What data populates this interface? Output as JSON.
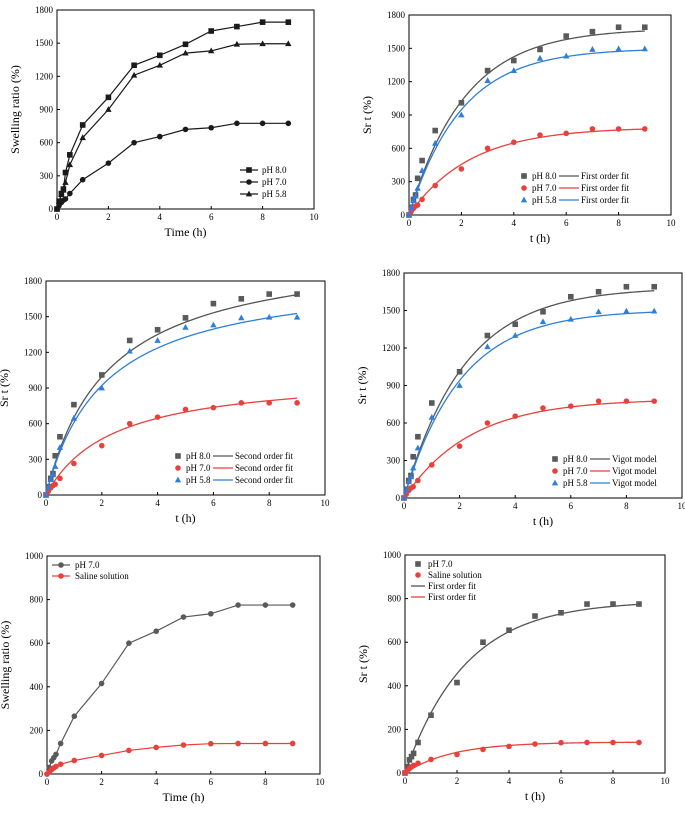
{
  "colors": {
    "black": "#1a1a1a",
    "gray": "#5a5a5a",
    "red": "#e8413c",
    "blue": "#2f7fd8",
    "fit_black": "#555555"
  },
  "chart_data": [
    {
      "id": "a",
      "type": "line",
      "title": "",
      "xlabel": "Time (h)",
      "ylabel": "Swelling ratio (%)",
      "xlim": [
        0,
        10
      ],
      "ylim": [
        0,
        1800
      ],
      "xticks": [
        0,
        2,
        4,
        6,
        8,
        10
      ],
      "yticks": [
        0,
        300,
        600,
        900,
        1200,
        1500,
        1800
      ],
      "legend_position": "bottom-right",
      "series": [
        {
          "name": "pH 8.0",
          "color": "#1a1a1a",
          "marker": "square",
          "mode": "line-marker",
          "x": [
            0,
            0.08,
            0.17,
            0.25,
            0.33,
            0.5,
            1,
            2,
            3,
            4,
            5,
            6,
            7,
            8,
            9
          ],
          "y": [
            0,
            70,
            140,
            180,
            330,
            490,
            760,
            1010,
            1300,
            1390,
            1490,
            1610,
            1650,
            1690,
            1690
          ]
        },
        {
          "name": "pH 7.0",
          "color": "#1a1a1a",
          "marker": "circle",
          "mode": "line-marker",
          "x": [
            0,
            0.08,
            0.17,
            0.25,
            0.33,
            0.5,
            1,
            2,
            3,
            4,
            5,
            6,
            7,
            8,
            9
          ],
          "y": [
            0,
            30,
            60,
            80,
            90,
            140,
            265,
            415,
            600,
            655,
            720,
            735,
            775,
            775,
            775
          ]
        },
        {
          "name": "pH 5.8",
          "color": "#1a1a1a",
          "marker": "triangle",
          "mode": "line-marker",
          "x": [
            0,
            0.08,
            0.17,
            0.25,
            0.33,
            0.5,
            1,
            2,
            3,
            4,
            5,
            6,
            7,
            8,
            9
          ],
          "y": [
            0,
            65,
            130,
            170,
            240,
            400,
            645,
            900,
            1210,
            1300,
            1410,
            1430,
            1490,
            1495,
            1495
          ]
        }
      ]
    },
    {
      "id": "b",
      "type": "scatter",
      "title": "",
      "xlabel": "t (h)",
      "ylabel": "Sr t (%)",
      "xlim": [
        0,
        10
      ],
      "ylim": [
        0,
        1800
      ],
      "xticks": [
        0,
        2,
        4,
        6,
        8,
        10
      ],
      "yticks": [
        0,
        300,
        600,
        900,
        1200,
        1500,
        1800
      ],
      "legend_position": "bottom-right",
      "series": [
        {
          "name": "pH 8.0",
          "fit_label": "First order fit",
          "color": "#5a5a5a",
          "fit_color": "#555555",
          "marker": "square",
          "x": [
            0,
            0.08,
            0.17,
            0.25,
            0.33,
            0.5,
            1,
            2,
            3,
            4,
            5,
            6,
            7,
            8,
            9
          ],
          "y": [
            0,
            70,
            140,
            180,
            330,
            490,
            760,
            1010,
            1300,
            1390,
            1490,
            1610,
            1650,
            1690,
            1690
          ],
          "fit": {
            "model": "first",
            "A": 1680,
            "k": 0.47
          }
        },
        {
          "name": "pH 7.0",
          "fit_label": "First order fit",
          "color": "#e8413c",
          "fit_color": "#e8413c",
          "marker": "circle",
          "x": [
            0,
            0.08,
            0.17,
            0.25,
            0.33,
            0.5,
            1,
            2,
            3,
            4,
            5,
            6,
            7,
            8,
            9
          ],
          "y": [
            0,
            30,
            60,
            80,
            90,
            140,
            265,
            415,
            600,
            655,
            720,
            735,
            775,
            775,
            775
          ],
          "fit": {
            "model": "first",
            "A": 790,
            "k": 0.43
          }
        },
        {
          "name": "pH 5.8",
          "fit_label": "First order fit",
          "color": "#2f7fd8",
          "fit_color": "#2f7fd8",
          "marker": "triangle",
          "x": [
            0,
            0.08,
            0.17,
            0.25,
            0.33,
            0.5,
            1,
            2,
            3,
            4,
            5,
            6,
            7,
            8,
            9
          ],
          "y": [
            0,
            65,
            130,
            170,
            240,
            400,
            645,
            900,
            1210,
            1300,
            1410,
            1430,
            1490,
            1495,
            1495
          ],
          "fit": {
            "model": "first",
            "A": 1500,
            "k": 0.5
          }
        }
      ]
    },
    {
      "id": "c",
      "type": "scatter",
      "title": "",
      "xlabel": "t (h)",
      "ylabel": "Sr t (%)",
      "xlim": [
        0,
        10
      ],
      "ylim": [
        0,
        1800
      ],
      "xticks": [
        0,
        2,
        4,
        6,
        8,
        10
      ],
      "yticks": [
        0,
        300,
        600,
        900,
        1200,
        1500,
        1800
      ],
      "legend_position": "bottom-right",
      "series": [
        {
          "name": "pH 8.0",
          "fit_label": "Second order fit",
          "color": "#5a5a5a",
          "fit_color": "#555555",
          "marker": "square",
          "x": [
            0,
            0.08,
            0.17,
            0.25,
            0.33,
            0.5,
            1,
            2,
            3,
            4,
            5,
            6,
            7,
            8,
            9
          ],
          "y": [
            0,
            70,
            140,
            180,
            330,
            490,
            760,
            1010,
            1300,
            1390,
            1490,
            1610,
            1650,
            1690,
            1690
          ],
          "fit": {
            "model": "second",
            "A": 2100,
            "b": 0.45
          }
        },
        {
          "name": "pH 7.0",
          "fit_label": "Second order fit",
          "color": "#e8413c",
          "fit_color": "#e8413c",
          "marker": "circle",
          "x": [
            0,
            0.08,
            0.17,
            0.25,
            0.33,
            0.5,
            1,
            2,
            3,
            4,
            5,
            6,
            7,
            8,
            9
          ],
          "y": [
            0,
            30,
            60,
            80,
            90,
            140,
            265,
            415,
            600,
            655,
            720,
            735,
            775,
            775,
            775
          ],
          "fit": {
            "model": "second",
            "A": 1030,
            "b": 0.42
          }
        },
        {
          "name": "pH 5.8",
          "fit_label": "Second order fit",
          "color": "#2f7fd8",
          "fit_color": "#2f7fd8",
          "marker": "triangle",
          "x": [
            0,
            0.08,
            0.17,
            0.25,
            0.33,
            0.5,
            1,
            2,
            3,
            4,
            5,
            6,
            7,
            8,
            9
          ],
          "y": [
            0,
            65,
            130,
            170,
            240,
            400,
            645,
            900,
            1210,
            1300,
            1410,
            1430,
            1490,
            1495,
            1495
          ],
          "fit": {
            "model": "second",
            "A": 1880,
            "b": 0.48
          }
        }
      ]
    },
    {
      "id": "d",
      "type": "scatter",
      "title": "",
      "xlabel": "t (h)",
      "ylabel": "Sr t (%)",
      "xlim": [
        0,
        10
      ],
      "ylim": [
        0,
        1800
      ],
      "xticks": [
        0,
        2,
        4,
        6,
        8,
        10
      ],
      "yticks": [
        0,
        300,
        600,
        900,
        1200,
        1500,
        1800
      ],
      "legend_position": "bottom-right",
      "series": [
        {
          "name": "pH 8.0",
          "fit_label": "Vigot model",
          "color": "#5a5a5a",
          "fit_color": "#555555",
          "marker": "square",
          "x": [
            0,
            0.08,
            0.17,
            0.25,
            0.33,
            0.5,
            1,
            2,
            3,
            4,
            5,
            6,
            7,
            8,
            9
          ],
          "y": [
            0,
            70,
            140,
            180,
            330,
            490,
            760,
            1010,
            1300,
            1390,
            1490,
            1610,
            1650,
            1690,
            1690
          ],
          "fit": {
            "model": "first",
            "A": 1685,
            "k": 0.46
          }
        },
        {
          "name": "pH 7.0",
          "fit_label": "Vigot model",
          "color": "#e8413c",
          "fit_color": "#e8413c",
          "marker": "circle",
          "x": [
            0,
            0.08,
            0.17,
            0.25,
            0.33,
            0.5,
            1,
            2,
            3,
            4,
            5,
            6,
            7,
            8,
            9
          ],
          "y": [
            0,
            30,
            60,
            80,
            90,
            140,
            265,
            415,
            600,
            655,
            720,
            735,
            775,
            775,
            775
          ],
          "fit": {
            "model": "first",
            "A": 792,
            "k": 0.42
          }
        },
        {
          "name": "pH 5.8",
          "fit_label": "Vigot model",
          "color": "#2f7fd8",
          "fit_color": "#2f7fd8",
          "marker": "triangle",
          "x": [
            0,
            0.08,
            0.17,
            0.25,
            0.33,
            0.5,
            1,
            2,
            3,
            4,
            5,
            6,
            7,
            8,
            9
          ],
          "y": [
            0,
            65,
            130,
            170,
            240,
            400,
            645,
            900,
            1210,
            1300,
            1410,
            1430,
            1490,
            1495,
            1495
          ],
          "fit": {
            "model": "first",
            "A": 1505,
            "k": 0.49
          }
        }
      ]
    },
    {
      "id": "e",
      "type": "line",
      "title": "",
      "xlabel": "Time (h)",
      "ylabel": "Swelling ratio (%)",
      "xlim": [
        0,
        10
      ],
      "ylim": [
        0,
        1000
      ],
      "xticks": [
        0,
        2,
        4,
        6,
        8,
        10
      ],
      "yticks": [
        0,
        200,
        400,
        600,
        800,
        1000
      ],
      "legend_position": "top-left",
      "series": [
        {
          "name": "pH 7.0",
          "color": "#5a5a5a",
          "marker": "circle",
          "mode": "line-marker",
          "x": [
            0,
            0.08,
            0.17,
            0.25,
            0.33,
            0.5,
            1,
            2,
            3,
            4,
            5,
            6,
            7,
            8,
            9
          ],
          "y": [
            0,
            30,
            60,
            75,
            90,
            140,
            265,
            415,
            600,
            655,
            720,
            735,
            775,
            775,
            775
          ]
        },
        {
          "name": "Saline solution",
          "color": "#e8413c",
          "marker": "circle",
          "mode": "line-marker",
          "x": [
            0,
            0.08,
            0.17,
            0.25,
            0.33,
            0.5,
            1,
            2,
            3,
            4,
            5,
            6,
            7,
            8,
            9
          ],
          "y": [
            0,
            10,
            20,
            28,
            35,
            45,
            62,
            85,
            108,
            122,
            133,
            139,
            140,
            140,
            140
          ]
        }
      ]
    },
    {
      "id": "f",
      "type": "scatter",
      "title": "",
      "xlabel": "t (h)",
      "ylabel": "Sr t (%)",
      "xlim": [
        0,
        10
      ],
      "ylim": [
        0,
        1000
      ],
      "xticks": [
        0,
        2,
        4,
        6,
        8,
        10
      ],
      "yticks": [
        0,
        200,
        400,
        600,
        800,
        1000
      ],
      "legend_position": "top-left",
      "legend_layout": "separate",
      "series": [
        {
          "name": "pH 7.0",
          "fit_label": "First order fit",
          "color": "#5a5a5a",
          "fit_color": "#555555",
          "marker": "square",
          "x": [
            0,
            0.08,
            0.17,
            0.25,
            0.33,
            0.5,
            1,
            2,
            3,
            4,
            5,
            6,
            7,
            8,
            9
          ],
          "y": [
            0,
            30,
            60,
            75,
            90,
            140,
            265,
            415,
            600,
            655,
            720,
            735,
            775,
            775,
            775
          ],
          "fit": {
            "model": "first",
            "A": 790,
            "k": 0.43
          }
        },
        {
          "name": "Saline solution",
          "fit_label": "First order fit",
          "color": "#e8413c",
          "fit_color": "#e8413c",
          "marker": "circle",
          "x": [
            0,
            0.08,
            0.17,
            0.25,
            0.33,
            0.5,
            1,
            2,
            3,
            4,
            5,
            6,
            7,
            8,
            9
          ],
          "y": [
            0,
            10,
            20,
            28,
            35,
            45,
            62,
            85,
            108,
            122,
            133,
            139,
            140,
            140,
            140
          ],
          "fit": {
            "model": "first",
            "A": 142,
            "k": 0.55
          }
        }
      ]
    }
  ]
}
